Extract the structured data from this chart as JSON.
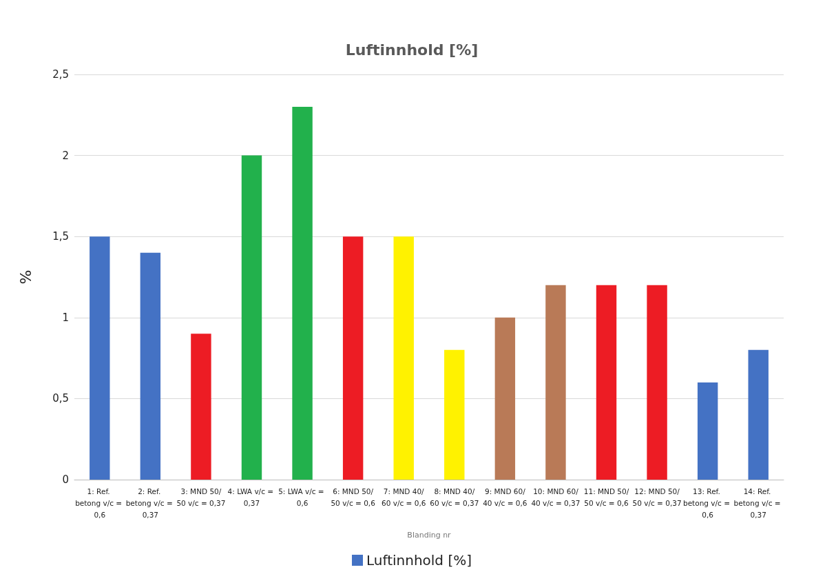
{
  "chart_data": {
    "type": "bar",
    "title": "Luftinnhold [%]",
    "xlabel": "Blanding nr",
    "ylabel": "%",
    "categories": [
      "1: Ref. betong v/c = 0,6",
      "2: Ref. betong v/c = 0,37",
      "3: MND 50/50 v/c = 0,37",
      "4: LWA v/c = 0,37",
      "5: LWA v/c = 0,6",
      "6: MND 50/50 v/c = 0,6",
      "7: MND 40/60 v/c = 0,6",
      "8: MND 40/60 v/c = 0,37",
      "9: MND 60/40 v/c = 0,6",
      "10: MND 60/40 v/c = 0,37",
      "11: MND 50/50 v/c = 0,6",
      "12: MND 50/50 v/c = 0,37",
      "13: Ref. betong v/c = 0,6",
      "14: Ref. betong v/c = 0,37"
    ],
    "series": [
      {
        "name": "Luftinnhold [%]",
        "color": "#4472c4",
        "values": [
          1.5,
          1.4,
          0.9,
          2.0,
          2.3,
          1.5,
          1.5,
          0.8,
          1.0,
          1.2,
          1.2,
          1.2,
          0.6,
          0.8
        ],
        "colors": [
          "#4472c4",
          "#4472c4",
          "#ed1c24",
          "#22b14c",
          "#22b14c",
          "#ed1c24",
          "#fff200",
          "#fff200",
          "#b97a57",
          "#b97a57",
          "#ed1c24",
          "#ed1c24",
          "#4472c4",
          "#4472c4"
        ]
      }
    ],
    "ylim": [
      0,
      2.5
    ],
    "yticks": [
      0,
      {
        "value": 0.5,
        "label": "0,5"
      },
      1,
      {
        "value": 1.5,
        "label": "1,5"
      },
      2,
      {
        "value": 2.5,
        "label": "2,5"
      }
    ],
    "grid": "y",
    "legend": "bottom"
  }
}
